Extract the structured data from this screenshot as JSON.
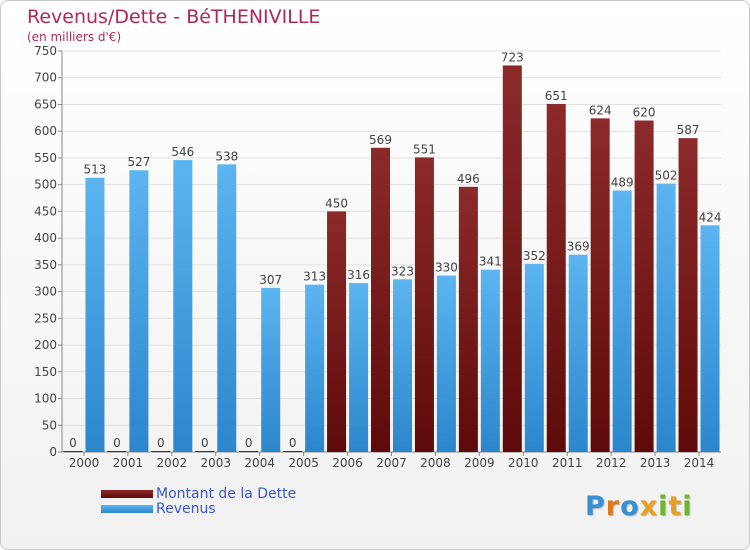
{
  "chart_data": {
    "type": "bar",
    "title": "Revenus/Dette - BéTHENIVILLE",
    "subtitle": "(en milliers d'€)",
    "categories": [
      "2000",
      "2001",
      "2002",
      "2003",
      "2004",
      "2005",
      "2006",
      "2007",
      "2008",
      "2009",
      "2010",
      "2011",
      "2012",
      "2013",
      "2014"
    ],
    "series": [
      {
        "name": "Montant de la Dette",
        "color": "#7a1a1a",
        "values": [
          0,
          0,
          0,
          0,
          0,
          0,
          450,
          569,
          551,
          496,
          723,
          651,
          624,
          620,
          587
        ]
      },
      {
        "name": "Revenus",
        "color": "#4da6e8",
        "values": [
          513,
          527,
          546,
          538,
          307,
          313,
          316,
          323,
          330,
          341,
          352,
          369,
          489,
          502,
          424
        ]
      }
    ],
    "ylim": [
      0,
      750
    ],
    "yticks": [
      0,
      50,
      100,
      150,
      200,
      250,
      300,
      350,
      400,
      450,
      500,
      550,
      600,
      650,
      700,
      750
    ],
    "grid": true,
    "legend_position": "bottom-left"
  },
  "logo": {
    "letters": [
      "P",
      "r",
      "o",
      "x",
      "i",
      "t",
      "i"
    ],
    "colors": [
      "#3a8fd0",
      "#e07a1a",
      "#3a8fd0",
      "#e8a020",
      "#6cb82c",
      "#e8a020",
      "#6cb82c"
    ]
  }
}
